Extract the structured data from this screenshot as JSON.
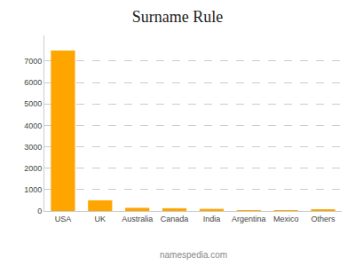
{
  "chart_data": {
    "type": "bar",
    "title": "Surname Rule",
    "categories": [
      "USA",
      "UK",
      "Australia",
      "Canada",
      "India",
      "Argentina",
      "Mexico",
      "Others"
    ],
    "values": [
      7500,
      500,
      150,
      130,
      100,
      30,
      30,
      80
    ],
    "color": "#FFA500",
    "ylim": [
      0,
      8200
    ],
    "yticks": [
      0,
      1000,
      2000,
      3000,
      4000,
      5000,
      6000,
      7000
    ],
    "grid": true,
    "annotations": [
      "namespedia.com"
    ]
  }
}
